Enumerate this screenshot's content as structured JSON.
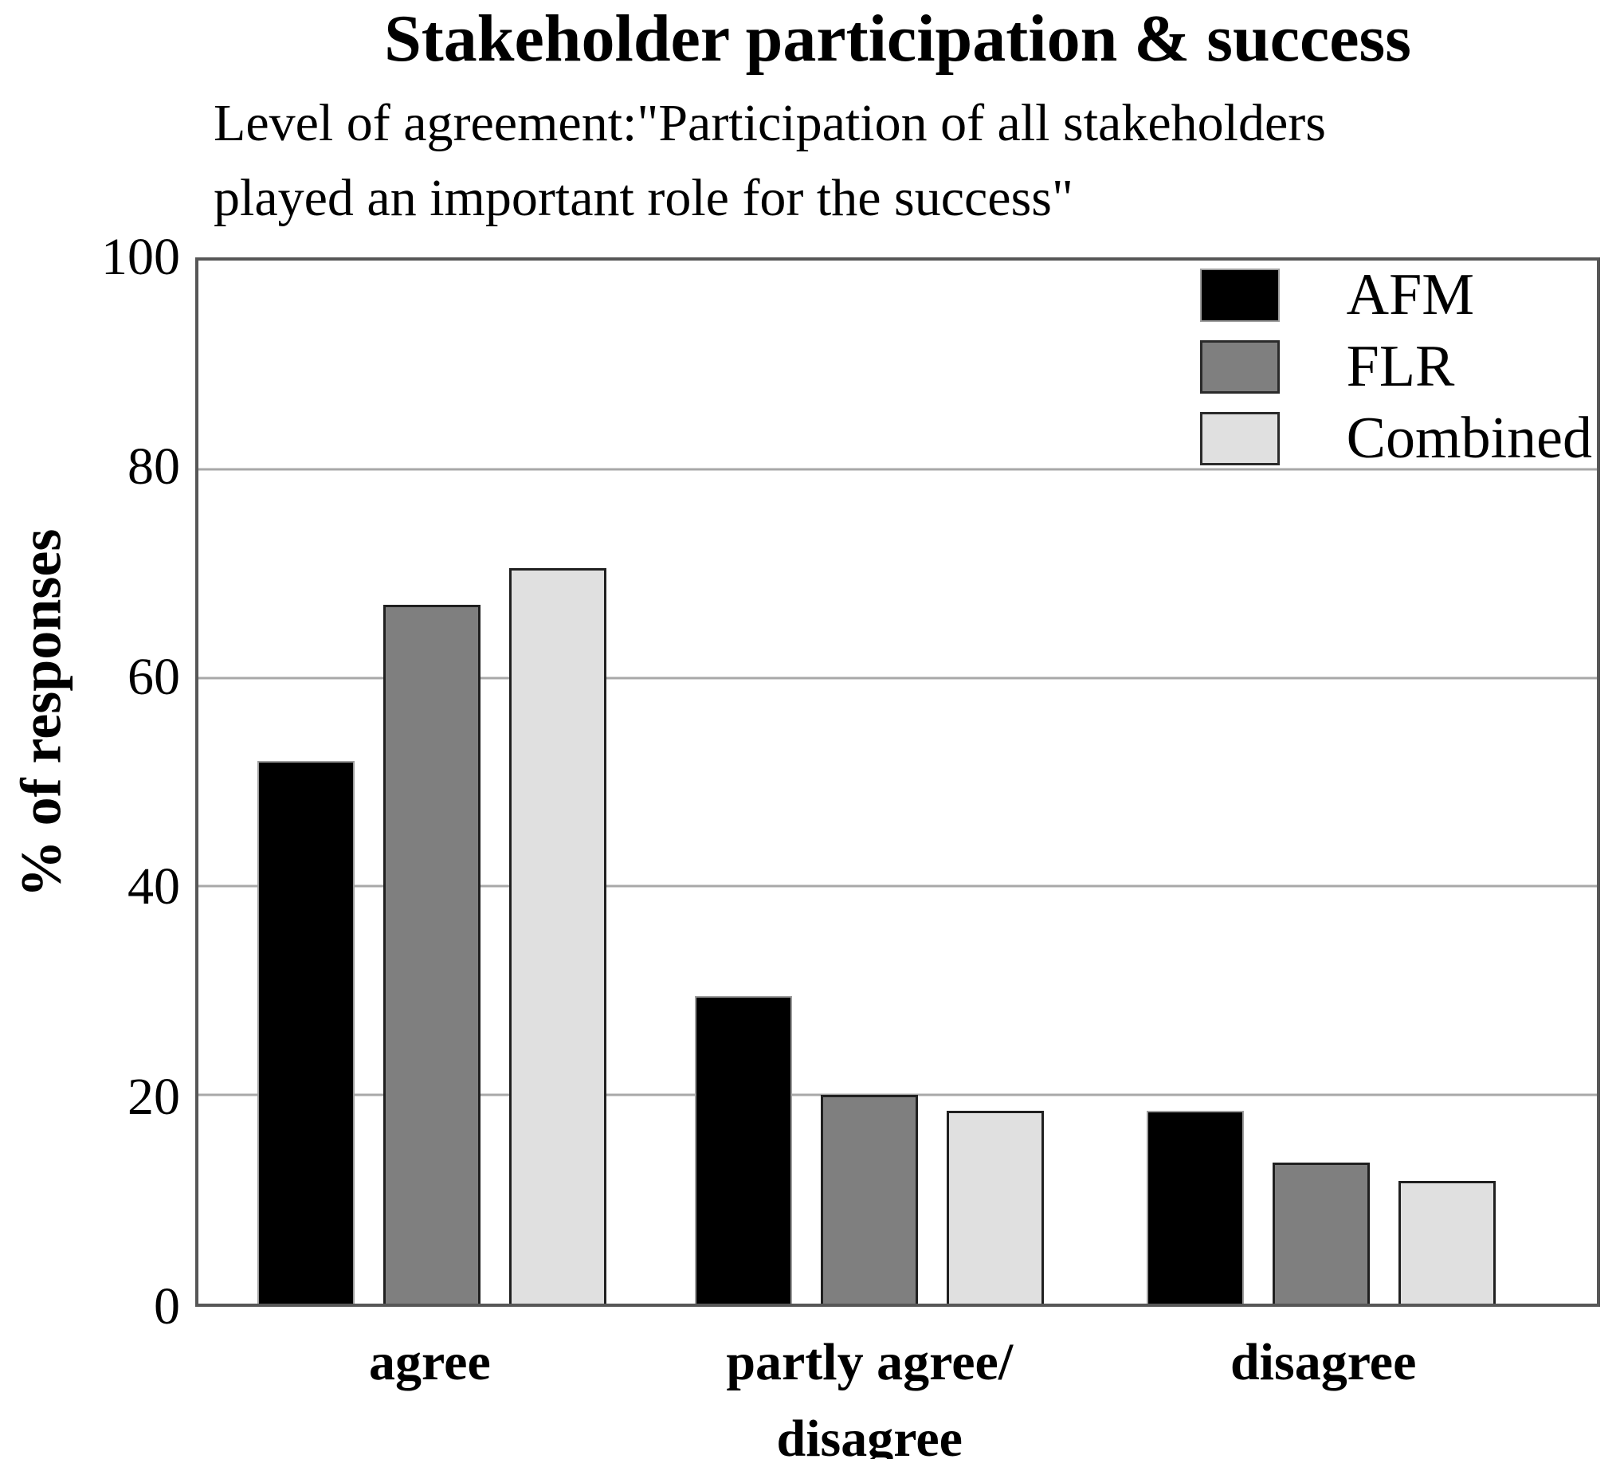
{
  "chart_data": {
    "type": "bar",
    "title": "Stakeholder participation & success",
    "subtitle_line1": "Level of agreement:\"Participation of all stakeholders",
    "subtitle_line2": "played an important role for the success\"",
    "categories": [
      "agree",
      "partly agree/\ndisagree",
      "disagree"
    ],
    "series": [
      {
        "name": "AFM",
        "color": "#000000",
        "values": [
          52,
          29.5,
          18.5
        ]
      },
      {
        "name": "FLR",
        "color": "#7f7f7f",
        "values": [
          67,
          20,
          13.5
        ]
      },
      {
        "name": "Combined",
        "color": "#e0e0e0",
        "values": [
          70.5,
          18.5,
          11.8
        ]
      }
    ],
    "xlabel": "",
    "ylabel": "% of responses",
    "ylim": [
      0,
      100
    ],
    "yticks": [
      0,
      20,
      40,
      60,
      80,
      100
    ],
    "gridline_values": [
      20,
      40,
      60,
      80
    ],
    "grid": "on",
    "legend_position": "top-right",
    "colors": {
      "grid": "#a8a8a8",
      "plot_border": "#575757",
      "bar_black": "#000000",
      "bar_gray": "#7f7f7f",
      "bar_lightgray": "#e0e0e0"
    }
  }
}
